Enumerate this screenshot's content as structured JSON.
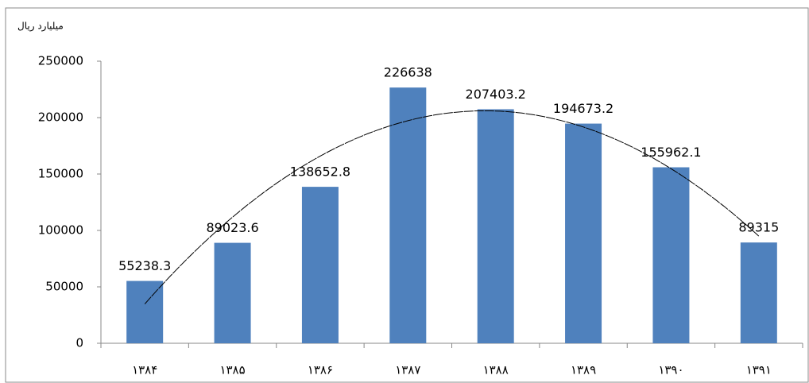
{
  "chart_data": {
    "type": "bar",
    "unit_label": "میلیارد ریال",
    "categories": [
      "۱۳۸۴",
      "۱۳۸۵",
      "۱۳۸۶",
      "۱۳۸۷",
      "۱۳۸۸",
      "۱۳۸۹",
      "۱۳۹۰",
      "۱۳۹۱"
    ],
    "values": [
      55238.3,
      89023.6,
      138652.8,
      226638,
      207403.2,
      194673.2,
      155962.1,
      89315
    ],
    "color": "#4f81bd",
    "ylim": [
      0,
      250000
    ],
    "yticks": [
      0,
      50000,
      100000,
      150000,
      200000,
      250000
    ],
    "grid": false,
    "trendline": "polynomial"
  }
}
